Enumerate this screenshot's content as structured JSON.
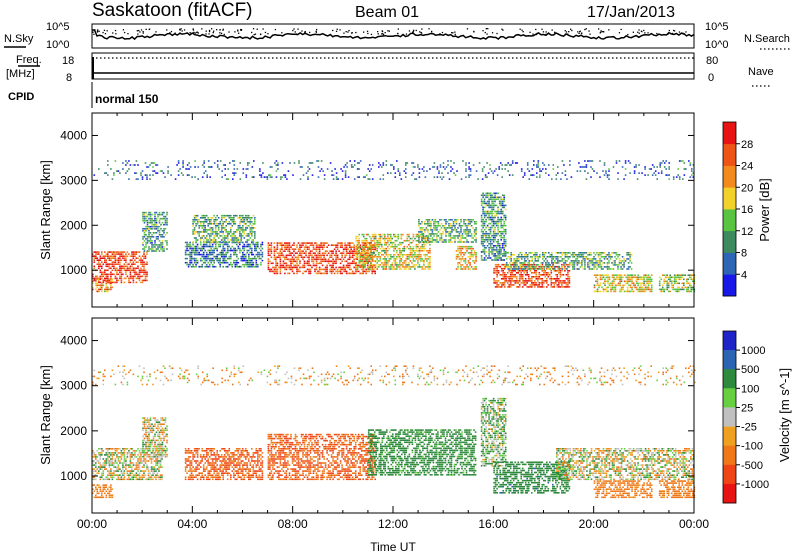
{
  "header": {
    "station": "Saskatoon (fitACF)",
    "beam": "Beam 01",
    "date": "17/Jan/2013"
  },
  "summary_panels": {
    "nsky": {
      "label": "N.Sky",
      "tick_top": "10^5",
      "tick_bottom": "10^0"
    },
    "nsearch": {
      "label": "N.Search",
      "tick_top": "10^5",
      "tick_bottom": "10^0"
    },
    "freq": {
      "label_line1": "Freq.",
      "label_line2": "[MHz]",
      "tick_top": "18",
      "tick_bottom": "8"
    },
    "nave": {
      "label": "Nave",
      "tick_top": "80",
      "tick_bottom": "0"
    },
    "cpid": {
      "label": "CPID",
      "mode": "normal 150"
    }
  },
  "chart_data": [
    {
      "type": "heatmap",
      "title": "",
      "xlabel": "",
      "ylabel": "Slant Range [km]",
      "xlim": [
        "00:00",
        "24:00"
      ],
      "ylim": [
        180,
        4500
      ],
      "y_ticks": [
        "1000",
        "2000",
        "3000",
        "4000"
      ],
      "colorbar": {
        "label": "Power [dB]",
        "ticks": [
          "4",
          "8",
          "12",
          "16",
          "20",
          "24",
          "28"
        ],
        "colors": [
          "#1818e8",
          "#2c66b4",
          "#3d8a5e",
          "#58c442",
          "#f2d22a",
          "#f28a1e",
          "#ee5416",
          "#e81414"
        ]
      },
      "echo_bands": [
        {
          "t_start": 0.0,
          "t_end": 2.2,
          "range_start": 700,
          "range_end": 1400,
          "level": 28
        },
        {
          "t_start": 0.0,
          "t_end": 0.8,
          "range_start": 500,
          "range_end": 800,
          "level": 22
        },
        {
          "t_start": 2.0,
          "t_end": 3.0,
          "range_start": 1400,
          "range_end": 2300,
          "level": 10
        },
        {
          "t_start": 3.7,
          "t_end": 6.8,
          "range_start": 1050,
          "range_end": 1600,
          "level": 8
        },
        {
          "t_start": 4.0,
          "t_end": 6.5,
          "range_start": 1600,
          "range_end": 2200,
          "level": 12
        },
        {
          "t_start": 7.0,
          "t_end": 11.3,
          "range_start": 900,
          "range_end": 1600,
          "level": 27
        },
        {
          "t_start": 10.5,
          "t_end": 13.5,
          "range_start": 1000,
          "range_end": 1800,
          "level": 18
        },
        {
          "t_start": 13.0,
          "t_end": 15.3,
          "range_start": 1600,
          "range_end": 2100,
          "level": 12
        },
        {
          "t_start": 14.5,
          "t_end": 15.3,
          "range_start": 1000,
          "range_end": 1500,
          "level": 20
        },
        {
          "t_start": 15.5,
          "t_end": 16.5,
          "range_start": 1200,
          "range_end": 2700,
          "level": 10
        },
        {
          "t_start": 16.0,
          "t_end": 19.0,
          "range_start": 600,
          "range_end": 1100,
          "level": 27
        },
        {
          "t_start": 16.5,
          "t_end": 21.5,
          "range_start": 1000,
          "range_end": 1400,
          "level": 12
        },
        {
          "t_start": 20.0,
          "t_end": 22.3,
          "range_start": 500,
          "range_end": 900,
          "level": 18
        },
        {
          "t_start": 22.6,
          "t_end": 24.0,
          "range_start": 500,
          "range_end": 900,
          "level": 16
        },
        {
          "t_start": 0.0,
          "t_end": 24.0,
          "range_start": 3000,
          "range_end": 3450,
          "level": 6
        }
      ]
    },
    {
      "type": "heatmap",
      "title": "",
      "xlabel": "Time UT",
      "ylabel": "Slant Range [km]",
      "xlim": [
        "00:00",
        "24:00"
      ],
      "ylim": [
        180,
        4500
      ],
      "x_ticks": [
        "00:00",
        "04:00",
        "08:00",
        "12:00",
        "16:00",
        "20:00",
        "00:00"
      ],
      "y_ticks": [
        "1000",
        "2000",
        "3000",
        "4000"
      ],
      "colorbar": {
        "label": "Velocity [m s^-1]",
        "ticks": [
          "1000",
          "500",
          "100",
          "25",
          "-25",
          "-100",
          "-500",
          "-1000"
        ],
        "colors": [
          "#1e24c8",
          "#2c64b4",
          "#2e8a3c",
          "#66d040",
          "#c0c0c0",
          "#f0a020",
          "#f07818",
          "#ee4416",
          "#e81414"
        ]
      },
      "echo_bands": [
        {
          "t_start": 0.0,
          "t_end": 2.8,
          "range_start": 900,
          "range_end": 1600,
          "level": 0
        },
        {
          "t_start": 0.0,
          "t_end": 0.8,
          "range_start": 500,
          "range_end": 800,
          "level": -150
        },
        {
          "t_start": 2.0,
          "t_end": 3.0,
          "range_start": 1400,
          "range_end": 2300,
          "level": 0
        },
        {
          "t_start": 3.7,
          "t_end": 6.8,
          "range_start": 900,
          "range_end": 1600,
          "level": -300
        },
        {
          "t_start": 7.0,
          "t_end": 11.3,
          "range_start": 900,
          "range_end": 1900,
          "level": -300
        },
        {
          "t_start": 11.0,
          "t_end": 15.3,
          "range_start": 1000,
          "range_end": 2000,
          "level": 150
        },
        {
          "t_start": 15.5,
          "t_end": 16.5,
          "range_start": 1200,
          "range_end": 2700,
          "level": 60
        },
        {
          "t_start": 16.0,
          "t_end": 19.0,
          "range_start": 600,
          "range_end": 1300,
          "level": 200
        },
        {
          "t_start": 18.5,
          "t_end": 24.0,
          "range_start": 900,
          "range_end": 1600,
          "level": 0
        },
        {
          "t_start": 20.0,
          "t_end": 22.3,
          "range_start": 500,
          "range_end": 900,
          "level": -150
        },
        {
          "t_start": 22.6,
          "t_end": 24.0,
          "range_start": 500,
          "range_end": 900,
          "level": -150
        },
        {
          "t_start": 0.0,
          "t_end": 24.0,
          "range_start": 3000,
          "range_end": 3450,
          "level": -50
        }
      ]
    }
  ]
}
